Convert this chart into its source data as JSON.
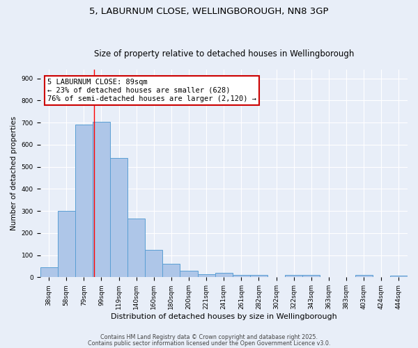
{
  "title1": "5, LABURNUM CLOSE, WELLINGBOROUGH, NN8 3GP",
  "title2": "Size of property relative to detached houses in Wellingborough",
  "xlabel": "Distribution of detached houses by size in Wellingborough",
  "ylabel": "Number of detached properties",
  "bar_labels": [
    "38sqm",
    "58sqm",
    "79sqm",
    "99sqm",
    "119sqm",
    "140sqm",
    "160sqm",
    "180sqm",
    "200sqm",
    "221sqm",
    "241sqm",
    "261sqm",
    "282sqm",
    "302sqm",
    "322sqm",
    "343sqm",
    "363sqm",
    "383sqm",
    "403sqm",
    "424sqm",
    "444sqm"
  ],
  "bar_values": [
    45,
    300,
    690,
    705,
    540,
    265,
    125,
    60,
    28,
    15,
    20,
    10,
    10,
    0,
    10,
    10,
    0,
    0,
    10,
    0,
    8
  ],
  "bar_color": "#aec6e8",
  "bar_edgecolor": "#5a9fd4",
  "bg_color": "#e8eef8",
  "grid_color": "#ffffff",
  "red_line_x": 2.57,
  "annotation_text": "5 LABURNUM CLOSE: 89sqm\n← 23% of detached houses are smaller (628)\n76% of semi-detached houses are larger (2,120) →",
  "annotation_box_color": "#ffffff",
  "annotation_box_edgecolor": "#cc0000",
  "ylim": [
    0,
    940
  ],
  "yticks": [
    0,
    100,
    200,
    300,
    400,
    500,
    600,
    700,
    800,
    900
  ],
  "footer1": "Contains HM Land Registry data © Crown copyright and database right 2025.",
  "footer2": "Contains public sector information licensed under the Open Government Licence v3.0.",
  "title1_fontsize": 9.5,
  "title2_fontsize": 8.5,
  "xlabel_fontsize": 8,
  "ylabel_fontsize": 7.5,
  "tick_fontsize": 6.5,
  "annotation_fontsize": 7.5,
  "footer_fontsize": 5.8
}
